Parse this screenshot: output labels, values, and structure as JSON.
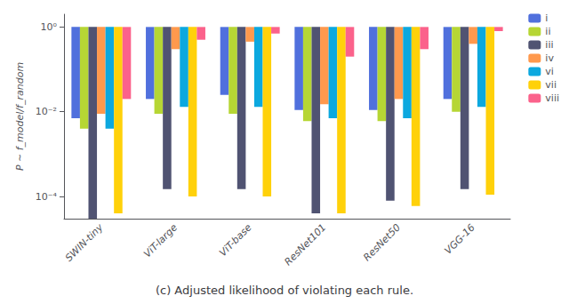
{
  "chart_data": {
    "type": "bar",
    "title": "(c) Adjusted likelihood of violating each rule.",
    "categories": [
      "SWIN-tiny",
      "ViT-large",
      "ViT-base",
      "ResNet101",
      "ResNet50",
      "VGG-16"
    ],
    "series": [
      {
        "name": "i",
        "values": [
          0.007,
          0.02,
          0.025,
          0.011,
          0.011,
          0.02
        ]
      },
      {
        "name": "ii",
        "values": [
          0.004,
          0.009,
          0.009,
          0.006,
          0.006,
          0.01
        ]
      },
      {
        "name": "iii",
        "values": [
          3e-05,
          0.00015,
          0.00015,
          4e-05,
          8e-05,
          0.00015
        ]
      },
      {
        "name": "iv",
        "values": [
          0.009,
          0.3,
          0.45,
          0.015,
          0.02,
          0.4
        ]
      },
      {
        "name": "vi",
        "values": [
          0.004,
          0.013,
          0.013,
          0.007,
          0.007,
          0.013
        ]
      },
      {
        "name": "vii",
        "values": [
          4e-05,
          0.0001,
          0.0001,
          4e-05,
          6e-05,
          0.00011
        ]
      },
      {
        "name": "viii",
        "values": [
          0.02,
          0.5,
          0.7,
          0.2,
          0.3,
          0.8
        ]
      }
    ],
    "ylabel": "P ∼ f_model/f_random",
    "log": "y",
    "ylim": [
      3e-05,
      2.0
    ],
    "yticks": [
      {
        "value": 0.0001,
        "label": "10⁻⁴"
      },
      {
        "value": 0.01,
        "label": "10⁻²"
      },
      {
        "value": 1,
        "label": "10⁰"
      }
    ],
    "grid": false,
    "legend": "upper right"
  }
}
